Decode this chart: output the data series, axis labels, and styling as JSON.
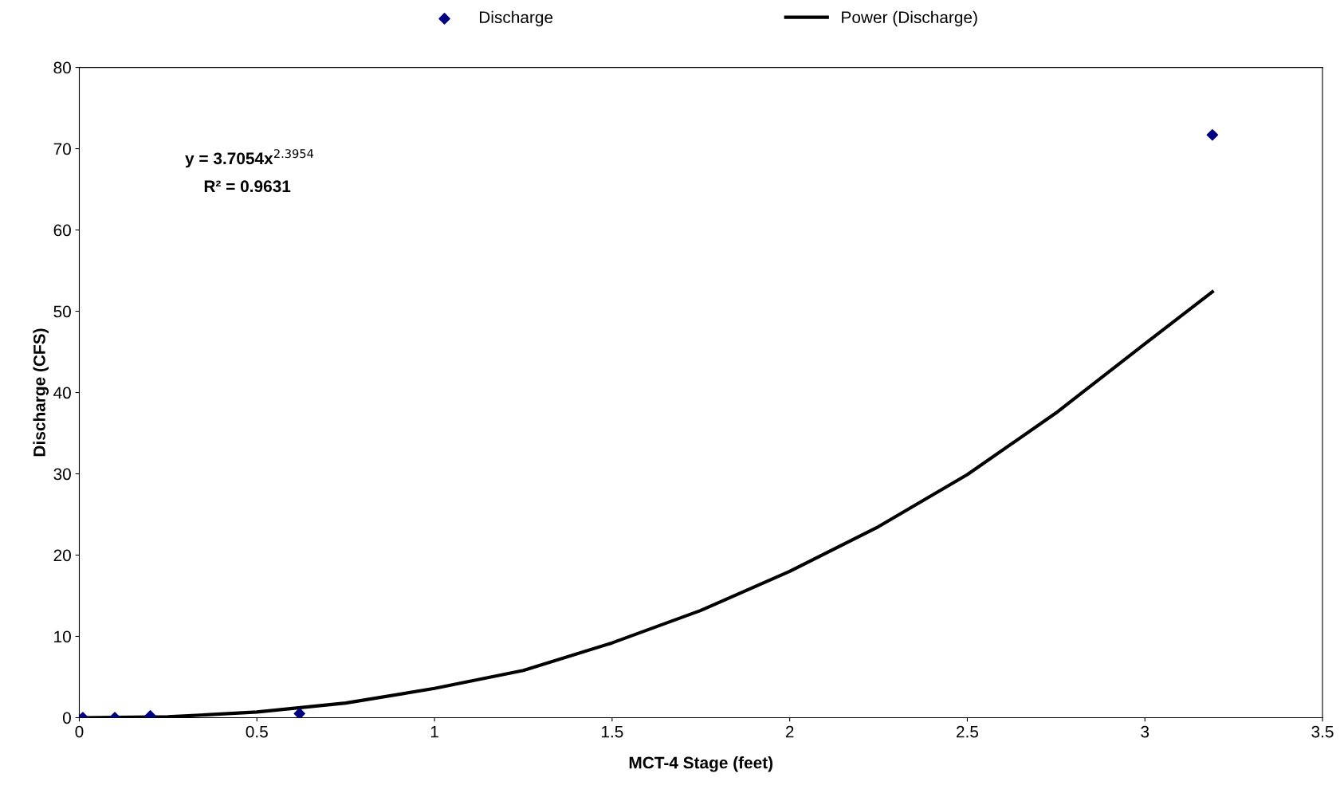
{
  "chart_data": {
    "type": "scatter",
    "xlabel": "MCT-4 Stage (feet)",
    "ylabel": "Discharge (CFS)",
    "series": [
      {
        "name": "Discharge",
        "color": "#000080",
        "marker": "diamond",
        "x": [
          0.01,
          0.1,
          0.2,
          0.62,
          3.19
        ],
        "values": [
          0.0,
          0.0,
          0.2,
          0.5,
          71.7
        ]
      },
      {
        "name": "Power (Discharge)",
        "type": "line",
        "color": "#000000",
        "marker": "none",
        "x": [
          0.01,
          0.25,
          0.5,
          0.75,
          1.0,
          1.25,
          1.5,
          1.75,
          2.0,
          2.25,
          2.5,
          2.75,
          3.0,
          3.19
        ],
        "values": [
          0.0,
          0.1,
          0.7,
          1.8,
          3.6,
          5.8,
          9.2,
          13.2,
          18.0,
          23.5,
          29.9,
          37.5,
          46.0,
          52.4
        ]
      }
    ],
    "annotations": [
      "y = 3.7054x$^{2.3954}$",
      "R² = 0.9631"
    ],
    "xlim": [
      0,
      3.5
    ],
    "xticks": [
      0,
      0.5,
      1,
      1.5,
      2,
      2.5,
      3,
      3.5
    ],
    "ylim": [
      0,
      80
    ],
    "yticks": [
      0,
      10,
      20,
      30,
      40,
      50,
      60,
      70,
      80
    ],
    "grid": false,
    "legend": "top"
  }
}
